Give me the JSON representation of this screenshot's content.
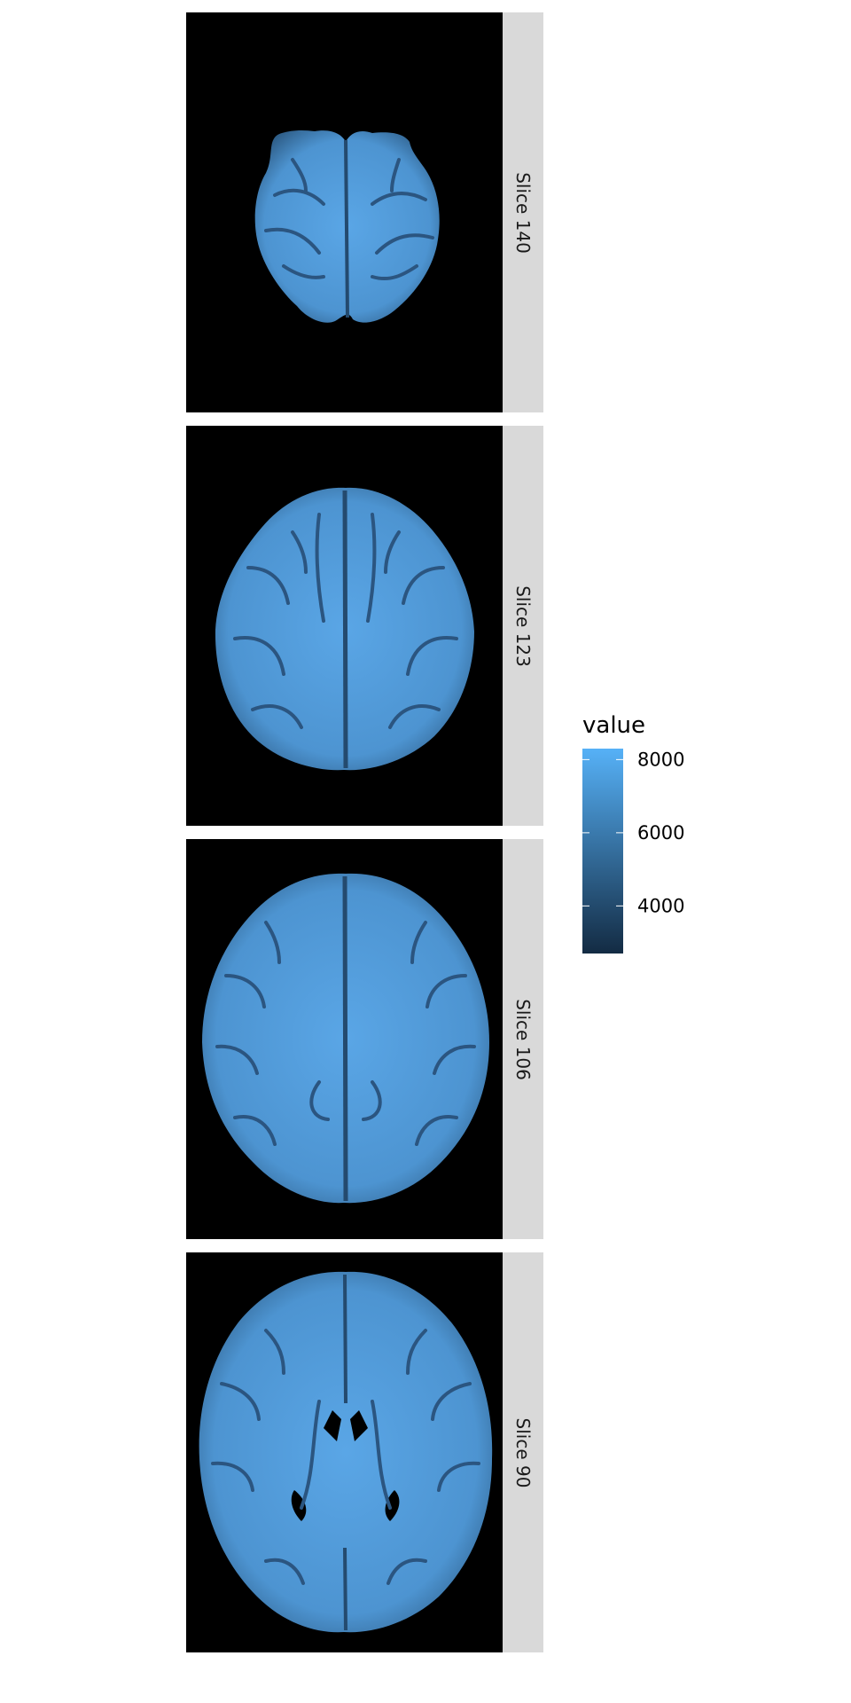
{
  "chart_data": {
    "type": "heatmap",
    "facet_by": "slice",
    "facets": [
      {
        "label": "Slice 140",
        "slice": 140
      },
      {
        "label": "Slice 123",
        "slice": 123
      },
      {
        "label": "Slice 106",
        "slice": 106
      },
      {
        "label": "Slice 90",
        "slice": 90
      }
    ],
    "background_color": "#000000",
    "strip_color": "#d9d9d9",
    "legend": {
      "title": "value",
      "position": "right",
      "ticks": [
        4000,
        6000,
        8000
      ],
      "tick_labels": [
        "4000",
        "6000",
        "8000"
      ],
      "range": [
        2700,
        8300
      ],
      "low_color": "#132b43",
      "high_color": "#56b1f7"
    }
  }
}
